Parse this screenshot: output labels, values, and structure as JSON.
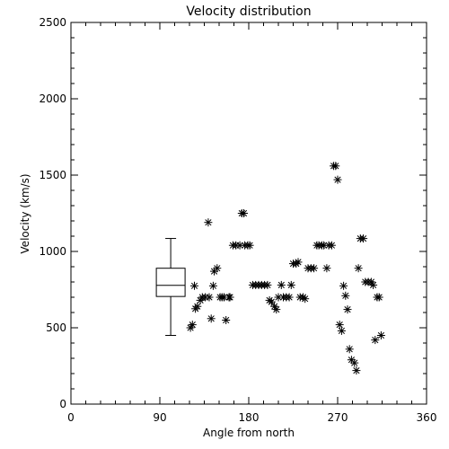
{
  "chart_data": {
    "type": "scatter",
    "title": "Velocity distribution",
    "xlabel": "Angle from north",
    "ylabel": "Velocity (km/s)",
    "xlim": [
      0,
      360
    ],
    "ylim": [
      0,
      2500
    ],
    "xticks": [
      0,
      90,
      180,
      270,
      360
    ],
    "yticks": [
      0,
      500,
      1000,
      1500,
      2000,
      2500
    ],
    "x_minor_step": 15,
    "y_minor_step": 100,
    "grid": false,
    "marker": "asterisk",
    "boxplot": {
      "x": 101,
      "min": 450,
      "q1": 705,
      "median": 778,
      "q3": 890,
      "max": 1085
    },
    "points": [
      [
        121,
        500
      ],
      [
        123,
        520
      ],
      [
        125,
        775
      ],
      [
        126,
        625
      ],
      [
        128,
        640
      ],
      [
        131,
        680
      ],
      [
        133,
        700
      ],
      [
        136,
        700
      ],
      [
        139,
        1190
      ],
      [
        140,
        700
      ],
      [
        142,
        560
      ],
      [
        144,
        775
      ],
      [
        145,
        870
      ],
      [
        148,
        890
      ],
      [
        151,
        700
      ],
      [
        153,
        700
      ],
      [
        155,
        700
      ],
      [
        157,
        550
      ],
      [
        160,
        700
      ],
      [
        161,
        700
      ],
      [
        164,
        1040
      ],
      [
        167,
        1040
      ],
      [
        171,
        1040
      ],
      [
        173,
        1250
      ],
      [
        175,
        1250
      ],
      [
        176,
        1040
      ],
      [
        179,
        1040
      ],
      [
        181,
        1040
      ],
      [
        184,
        780
      ],
      [
        187,
        780
      ],
      [
        190,
        780
      ],
      [
        193,
        780
      ],
      [
        196,
        780
      ],
      [
        199,
        780
      ],
      [
        201,
        680
      ],
      [
        203,
        670
      ],
      [
        206,
        640
      ],
      [
        208,
        620
      ],
      [
        210,
        700
      ],
      [
        213,
        780
      ],
      [
        215,
        700
      ],
      [
        218,
        700
      ],
      [
        221,
        700
      ],
      [
        223,
        780
      ],
      [
        225,
        920
      ],
      [
        228,
        920
      ],
      [
        230,
        930
      ],
      [
        232,
        700
      ],
      [
        235,
        700
      ],
      [
        237,
        690
      ],
      [
        240,
        890
      ],
      [
        243,
        890
      ],
      [
        246,
        890
      ],
      [
        249,
        1040
      ],
      [
        251,
        1040
      ],
      [
        254,
        1040
      ],
      [
        256,
        1040
      ],
      [
        259,
        890
      ],
      [
        261,
        1040
      ],
      [
        264,
        1040
      ],
      [
        266,
        1560
      ],
      [
        268,
        1560
      ],
      [
        270,
        1470
      ],
      [
        272,
        520
      ],
      [
        274,
        480
      ],
      [
        276,
        775
      ],
      [
        278,
        710
      ],
      [
        280,
        620
      ],
      [
        282,
        360
      ],
      [
        284,
        290
      ],
      [
        287,
        270
      ],
      [
        289,
        220
      ],
      [
        291,
        890
      ],
      [
        293,
        1085
      ],
      [
        296,
        1085
      ],
      [
        298,
        800
      ],
      [
        301,
        800
      ],
      [
        304,
        800
      ],
      [
        306,
        780
      ],
      [
        308,
        420
      ],
      [
        310,
        700
      ],
      [
        312,
        700
      ],
      [
        314,
        450
      ]
    ]
  }
}
